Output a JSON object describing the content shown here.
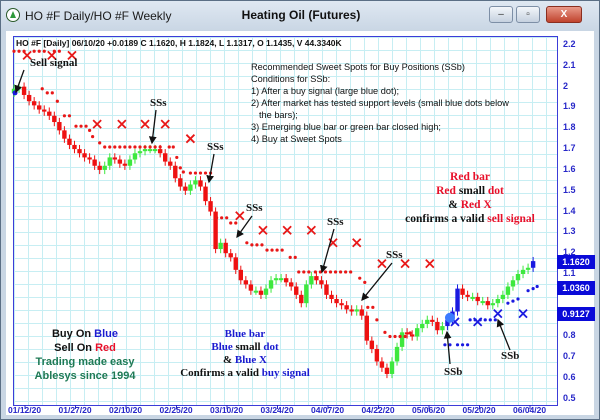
{
  "window": {
    "title": "HO #F Daily/HO #F Weekly",
    "chart_title": "Heating Oil (Futures)",
    "minimize": "‒",
    "maximize": "▫",
    "close": "X"
  },
  "header": "HO #F [Daily] 06/10/20  +0.0189 C 1.1620, H 1.1824, L 1.1317, O 1.1435, V 44.3340K",
  "notes": [
    "Recommended Sweet Spots for Buy Positions (SSb)",
    "Conditions for SSb:",
    "1) After a buy signal (large blue dot);",
    "2) After market has tested support levels (small blue dots below",
    "   the bars);",
    "3) Emerging blue bar or green bar closed high;",
    "4) Buy at Sweet Spots"
  ],
  "sell_legend": {
    "l1": "Red bar",
    "l2a": "Red",
    "l2b": " small ",
    "l2c": "dot",
    "l3a": "& ",
    "l3b": "Red X",
    "l4a": "confirms a valid ",
    "l4b": "sell signal"
  },
  "buy_legend": {
    "l1": "Blue bar",
    "l2a": "Blue",
    "l2b": " small ",
    "l2c": "dot",
    "l3a": "& ",
    "l3b": "Blue X",
    "l4a": "Confirms a valid ",
    "l4b": "buy signal"
  },
  "brand": {
    "l1a": "Buy On ",
    "l1b": "Blue",
    "l2a": "Sell On ",
    "l2b": "Red",
    "l3": "Trading made easy",
    "l4": "Ablesys since 1994"
  },
  "annotations": {
    "sell_signal": "Sell signal",
    "ss": "SSs",
    "sb": "SSb"
  },
  "colors": {
    "up": "#3ee83e",
    "down": "#ee1111",
    "blue": "#1a1ae0",
    "grid": "#c7eef3",
    "axis": "#2727c8"
  },
  "chart_data": {
    "type": "candlestick",
    "title": "Heating Oil (Futures)",
    "y_ticks": [
      2.2,
      2.1,
      2,
      1.9,
      1.8,
      1.7,
      1.6,
      1.5,
      1.4,
      1.3,
      1.2,
      1.1,
      0.8,
      0.7,
      0.6,
      0.5
    ],
    "ylim": [
      0.5,
      2.2
    ],
    "x_ticks": [
      "01/12/20",
      "01/27/20",
      "02/10/20",
      "02/25/20",
      "03/10/20",
      "03/24/20",
      "04/07/20",
      "04/22/20",
      "05/06/20",
      "05/20/20",
      "06/04/20"
    ],
    "price_labels": [
      "1.1620",
      "1.0360",
      "0.9127"
    ],
    "close": [
      1.99,
      2.0,
      1.96,
      1.93,
      1.91,
      1.89,
      1.88,
      1.86,
      1.83,
      1.79,
      1.75,
      1.72,
      1.7,
      1.68,
      1.66,
      1.65,
      1.62,
      1.6,
      1.62,
      1.66,
      1.65,
      1.63,
      1.62,
      1.65,
      1.68,
      1.69,
      1.7,
      1.7,
      1.7,
      1.68,
      1.64,
      1.62,
      1.56,
      1.52,
      1.5,
      1.53,
      1.55,
      1.52,
      1.45,
      1.4,
      1.22,
      1.25,
      1.2,
      1.18,
      1.12,
      1.07,
      1.05,
      1.02,
      1.02,
      1.0,
      1.03,
      1.07,
      1.08,
      1.08,
      1.06,
      1.04,
      1.0,
      0.96,
      1.05,
      1.09,
      1.07,
      1.05,
      1.0,
      0.98,
      0.96,
      0.95,
      0.93,
      0.92,
      0.93,
      0.9,
      0.78,
      0.74,
      0.68,
      0.65,
      0.62,
      0.68,
      0.75,
      0.82,
      0.81,
      0.8,
      0.84,
      0.86,
      0.88,
      0.87,
      0.83,
      0.85,
      0.88,
      0.92,
      1.03,
      1.0,
      0.99,
      0.99,
      0.97,
      0.97,
      0.95,
      0.96,
      0.98,
      1.0,
      1.04,
      1.07,
      1.1,
      1.12,
      1.13,
      1.162
    ],
    "blue_bars": [
      86,
      87,
      88,
      103
    ],
    "red_dots": [
      [
        0,
        2.17
      ],
      [
        1,
        2.17
      ],
      [
        2,
        2.17
      ],
      [
        4,
        2.17
      ],
      [
        5,
        2.17
      ],
      [
        6,
        2.17
      ],
      [
        8,
        2.17
      ],
      [
        9,
        2.17
      ],
      [
        5.6,
        1.99
      ],
      [
        6.6,
        1.97
      ],
      [
        7.6,
        1.97
      ],
      [
        8.6,
        1.93
      ],
      [
        10,
        1.86
      ],
      [
        11,
        1.86
      ],
      [
        12.3,
        1.81
      ],
      [
        13.3,
        1.81
      ],
      [
        14.3,
        1.81
      ],
      [
        15,
        1.79
      ],
      [
        15.6,
        1.76
      ],
      [
        17,
        1.73
      ],
      [
        18,
        1.71
      ],
      [
        19,
        1.71
      ],
      [
        20,
        1.71
      ],
      [
        21,
        1.71
      ],
      [
        22,
        1.71
      ],
      [
        23,
        1.71
      ],
      [
        24,
        1.71
      ],
      [
        25,
        1.71
      ],
      [
        26,
        1.71
      ],
      [
        27,
        1.71
      ],
      [
        28,
        1.71
      ],
      [
        29,
        1.71
      ],
      [
        30.8,
        1.71
      ],
      [
        31.6,
        1.71
      ],
      [
        32.3,
        1.66
      ],
      [
        33,
        1.61
      ],
      [
        33.6,
        1.59
      ],
      [
        35,
        1.585
      ],
      [
        36,
        1.585
      ],
      [
        37,
        1.585
      ],
      [
        38,
        1.585
      ],
      [
        39,
        1.585
      ],
      [
        40.2,
        1.37
      ],
      [
        41.2,
        1.37
      ],
      [
        42.2,
        1.37
      ],
      [
        43,
        1.345
      ],
      [
        44,
        1.345
      ],
      [
        46.2,
        1.25
      ],
      [
        47.2,
        1.24
      ],
      [
        48.2,
        1.24
      ],
      [
        49.2,
        1.24
      ],
      [
        50.2,
        1.215
      ],
      [
        51.2,
        1.215
      ],
      [
        52.2,
        1.215
      ],
      [
        53.2,
        1.215
      ],
      [
        54.8,
        1.18
      ],
      [
        55.8,
        1.18
      ],
      [
        56.5,
        1.11
      ],
      [
        57.5,
        1.11
      ],
      [
        58.5,
        1.11
      ],
      [
        59.8,
        1.11
      ],
      [
        60.8,
        1.11
      ],
      [
        61.8,
        1.11
      ],
      [
        62.8,
        1.11
      ],
      [
        63.8,
        1.11
      ],
      [
        64.8,
        1.11
      ],
      [
        65.8,
        1.11
      ],
      [
        66.8,
        1.11
      ],
      [
        68.6,
        1.08
      ],
      [
        69.6,
        1.06
      ],
      [
        70.2,
        0.94
      ],
      [
        71.2,
        0.94
      ],
      [
        72,
        0.88
      ],
      [
        73.6,
        0.82
      ],
      [
        74.6,
        0.8
      ],
      [
        75.6,
        0.8
      ],
      [
        76.6,
        0.8
      ],
      [
        77.6,
        0.8
      ],
      [
        78.6,
        0.817
      ]
    ],
    "red_x": [
      [
        2.6,
        2.15
      ],
      [
        7.5,
        2.15
      ],
      [
        11.5,
        2.15
      ],
      [
        16.5,
        1.82
      ],
      [
        21.4,
        1.82
      ],
      [
        26,
        1.82
      ],
      [
        30,
        1.82
      ],
      [
        35,
        1.75
      ],
      [
        44.8,
        1.38
      ],
      [
        49.4,
        1.31
      ],
      [
        54.2,
        1.31
      ],
      [
        59,
        1.31
      ],
      [
        63.3,
        1.25
      ],
      [
        68,
        1.25
      ],
      [
        73,
        1.15
      ],
      [
        77.6,
        1.15
      ],
      [
        82.5,
        1.15
      ]
    ],
    "blue_dots": [
      [
        85.5,
        0.76
      ],
      [
        86.5,
        0.76
      ],
      [
        88,
        0.76
      ],
      [
        89,
        0.76
      ],
      [
        90,
        0.76
      ],
      [
        90.5,
        0.88
      ],
      [
        91.5,
        0.88
      ],
      [
        92.5,
        0.88
      ],
      [
        93.5,
        0.88
      ],
      [
        94.5,
        0.88
      ],
      [
        95.5,
        0.88
      ],
      [
        98,
        0.96
      ],
      [
        99,
        0.97
      ],
      [
        100,
        0.98
      ],
      [
        102,
        1.02
      ],
      [
        103,
        1.03
      ],
      [
        103.8,
        1.04
      ]
    ],
    "blue_x": [
      [
        87.5,
        0.87
      ],
      [
        92,
        0.87
      ],
      [
        96,
        0.91
      ],
      [
        101,
        0.91
      ]
    ],
    "buy_signal_dot": [
      86.5,
      0.89
    ],
    "sell_signal_dot": [
      0.2,
      1.97
    ]
  }
}
